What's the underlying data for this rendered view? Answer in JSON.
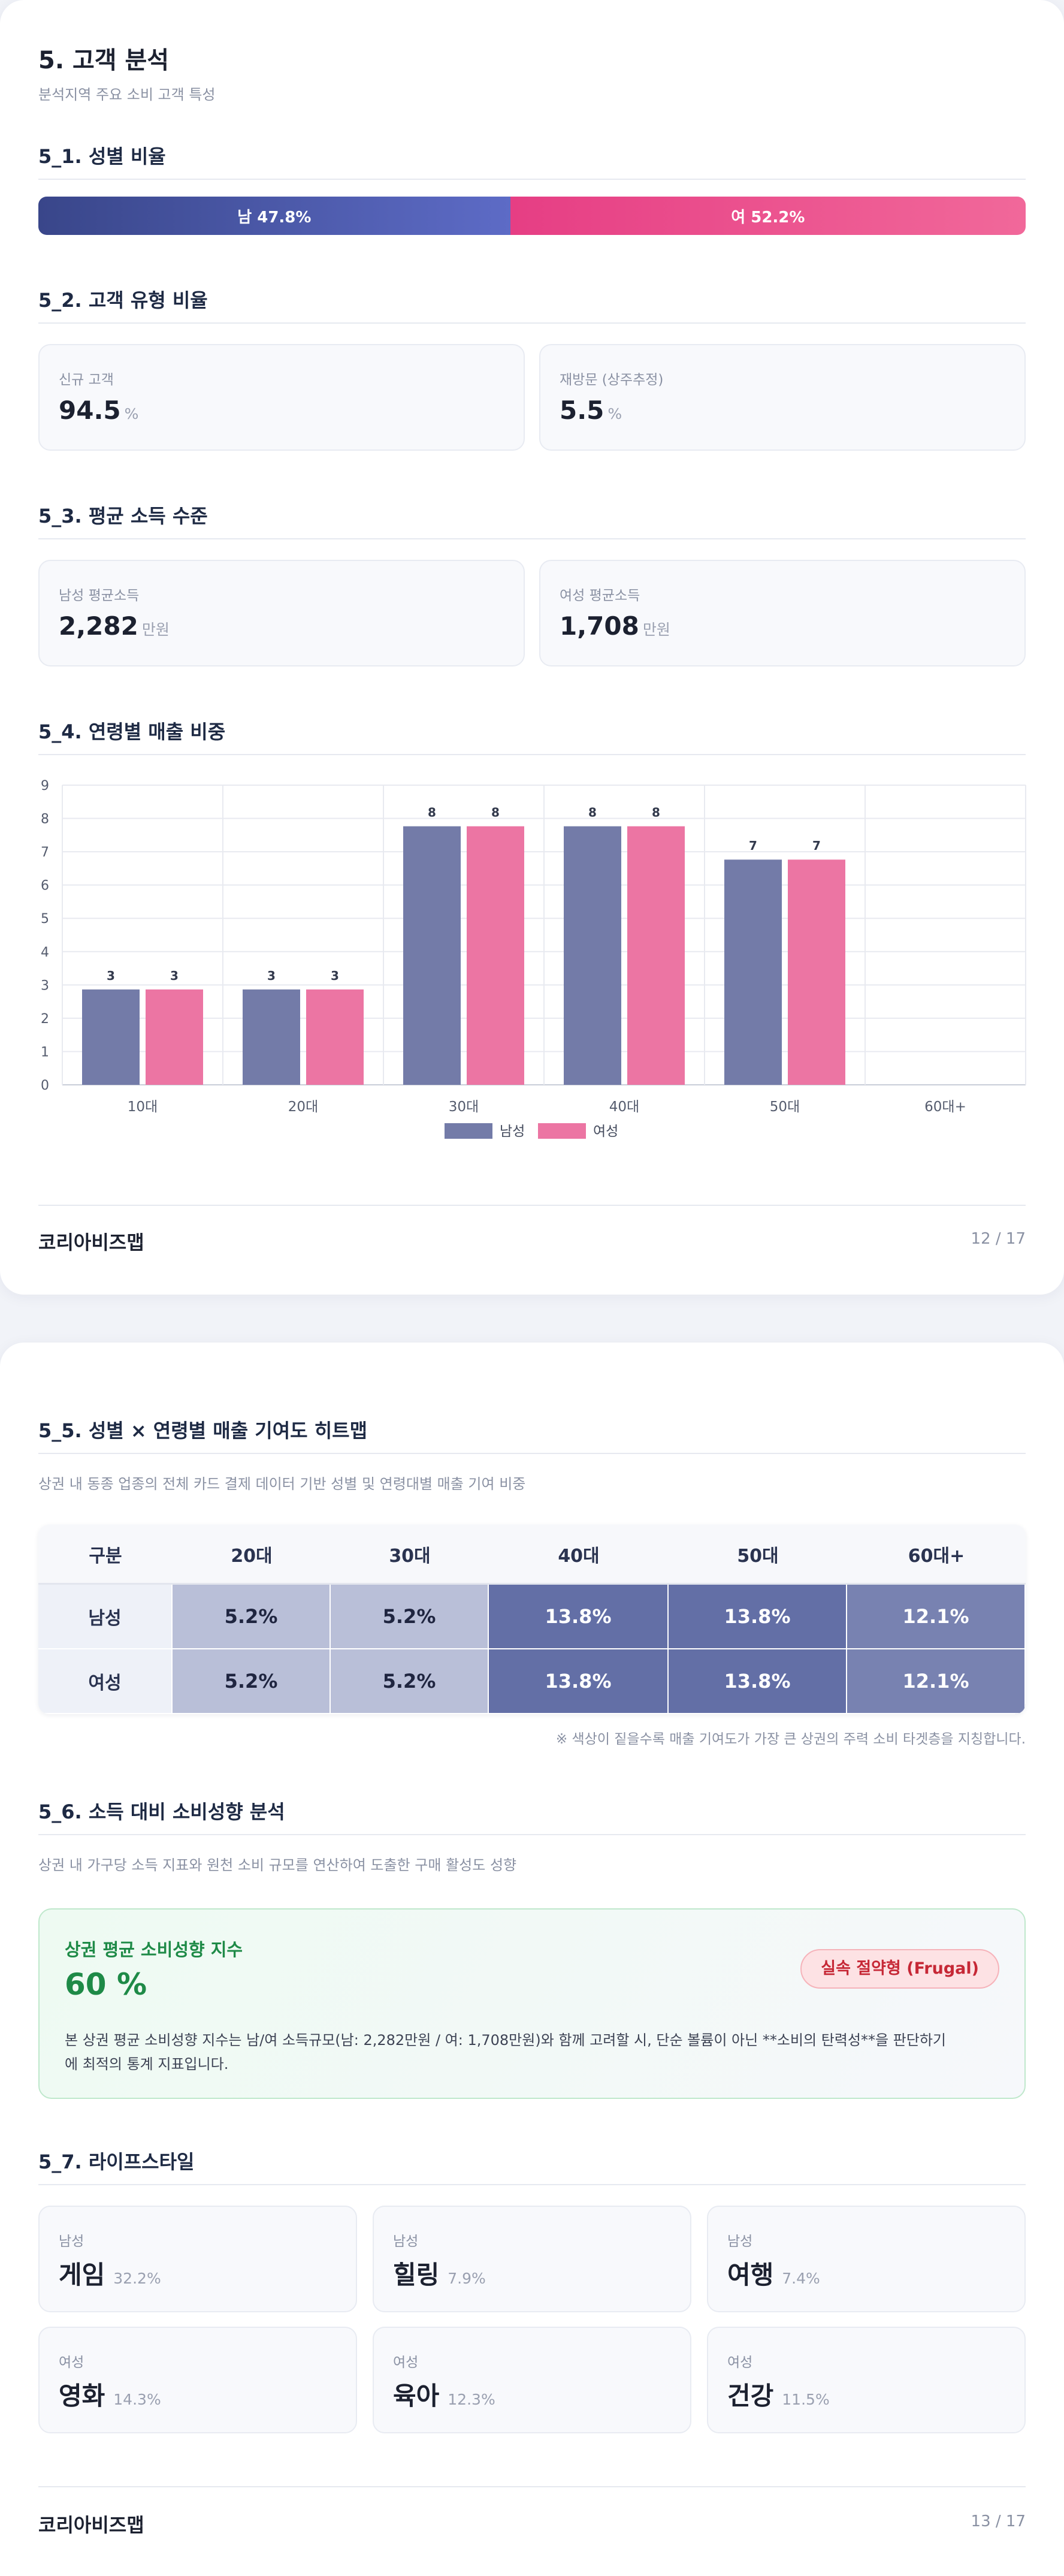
{
  "page1": {
    "title": "5. 고객 분석",
    "subtitle": "분석지역 주요 소비 고객 특성",
    "gender": {
      "heading": "5_1. 성별 비율",
      "male_label": "남 47.8%",
      "male_pct": 47.8,
      "female_label": "여 52.2%",
      "female_pct": 52.2
    },
    "customer_type": {
      "heading": "5_2. 고객 유형 비율",
      "new_label": "신규 고객",
      "new_value": "94.5",
      "new_unit": "%",
      "return_label": "재방문 (상주추정)",
      "return_value": "5.5",
      "return_unit": "%"
    },
    "income": {
      "heading": "5_3. 평균 소득 수준",
      "male_label": "남성 평균소득",
      "male_value": "2,282",
      "male_unit": "만원",
      "female_label": "여성 평균소득",
      "female_value": "1,708",
      "female_unit": "만원"
    },
    "age_sales": {
      "heading": "5_4. 연령별 매출 비중"
    },
    "footer": {
      "brand": "코리아비즈맵",
      "page": "12 / 17"
    }
  },
  "chart_data": {
    "type": "bar",
    "categories": [
      "10대",
      "20대",
      "30대",
      "40대",
      "50대",
      "60대+"
    ],
    "series": [
      {
        "name": "남성",
        "values": [
          3,
          3,
          8,
          8,
          7,
          0
        ],
        "labels": [
          "3",
          "3",
          "8",
          "8",
          "7",
          ""
        ]
      },
      {
        "name": "여성",
        "values": [
          3,
          3,
          8,
          8,
          7,
          0
        ],
        "labels": [
          "3",
          "3",
          "8",
          "8",
          "7",
          ""
        ]
      }
    ],
    "plotted_values": {
      "남성": [
        2.9,
        2.9,
        7.8,
        7.8,
        6.8,
        0
      ],
      "여성": [
        2.9,
        2.9,
        7.8,
        7.8,
        6.8,
        0
      ]
    },
    "ylim": [
      0,
      9
    ],
    "yticks": [
      "0",
      "1",
      "2",
      "3",
      "4",
      "5",
      "6",
      "7",
      "8",
      "9"
    ],
    "grid": true,
    "legend": "bottom-center",
    "colors": {
      "남성": "#737ba8",
      "여성": "#ec75a3"
    }
  },
  "page2": {
    "heatmap": {
      "heading": "5_5. 성별 × 연령별 매출 기여도 히트맵",
      "desc": "상권 내 동종 업종의 전체 카드 결제 데이터 기반 성별 및 연령대별 매출 기여 비중",
      "header": [
        "구분",
        "20대",
        "30대",
        "40대",
        "50대",
        "60대+"
      ],
      "rows": [
        {
          "label": "남성",
          "cells": [
            "5.2%",
            "5.2%",
            "13.8%",
            "13.8%",
            "12.1%"
          ]
        },
        {
          "label": "여성",
          "cells": [
            "5.2%",
            "5.2%",
            "13.8%",
            "13.8%",
            "12.1%"
          ]
        }
      ],
      "note": "※ 색상이 짙을수록 매출 기여도가 가장 큰 상권의 주력 소비 타겟층을 지칭합니다."
    },
    "spending": {
      "heading": "5_6. 소득 대비 소비성향 분석",
      "desc": "상권 내 가구당 소득 지표와 원천 소비 규모를 연산하여 도출한 구매 활성도 성향",
      "box_title": "상권 평균 소비성향 지수",
      "box_value": "60 %",
      "badge": "실속 절약형 (Frugal)",
      "box_text_1": "본 상권 평균 소비성향 지수는 남/여 소득규모(남: 2,282만원 / 여: 1,708만원)와 함께 고려할 시, 단순 볼륨이 아닌 **소비의 탄력성**을 판단하기",
      "box_text_2": "에 최적의 통계 지표입니다."
    },
    "lifestyle": {
      "heading": "5_7. 라이프스타일",
      "items": [
        {
          "gender": "남성",
          "name": "게임",
          "pct": "32.2%"
        },
        {
          "gender": "남성",
          "name": "힐링",
          "pct": "7.9%"
        },
        {
          "gender": "남성",
          "name": "여행",
          "pct": "7.4%"
        },
        {
          "gender": "여성",
          "name": "영화",
          "pct": "14.3%"
        },
        {
          "gender": "여성",
          "name": "육아",
          "pct": "12.3%"
        },
        {
          "gender": "여성",
          "name": "건강",
          "pct": "11.5%"
        }
      ]
    },
    "footer": {
      "brand": "코리아비즈맵",
      "page": "13 / 17"
    }
  }
}
